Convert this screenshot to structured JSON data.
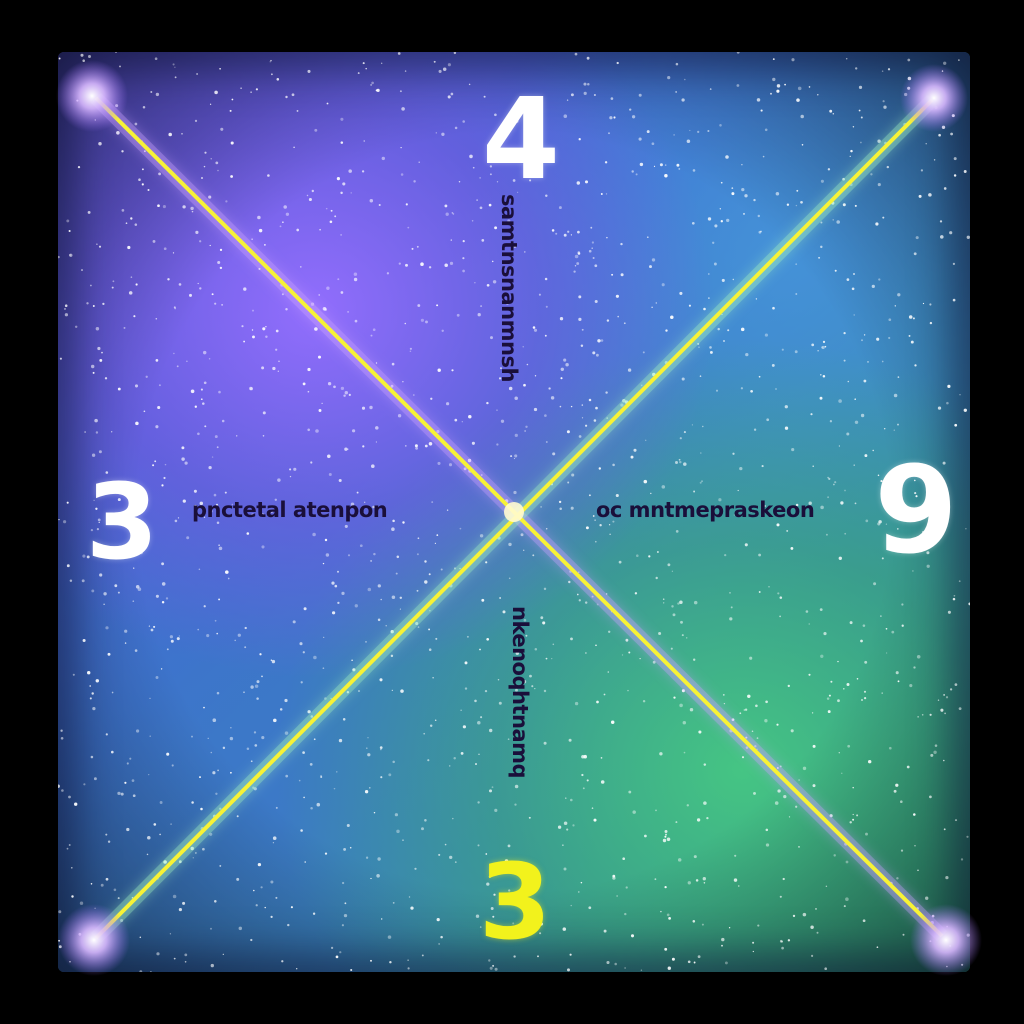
{
  "numerals": {
    "top": "4",
    "left": "3",
    "right": "9",
    "bottom": "3"
  },
  "captions": {
    "left": "pnctetal atenpon",
    "right": "oc mntmepraskeon",
    "top": "samtnsnanmnsh",
    "bottom": "nkenoqhtnamq"
  },
  "colors": {
    "background": "#000000",
    "line": "#f7f236",
    "line_glow": "#c8a0ff",
    "numeral": "#ffffff",
    "numeral_bottom": "#f2f21c",
    "caption": "#1a0f3a"
  }
}
